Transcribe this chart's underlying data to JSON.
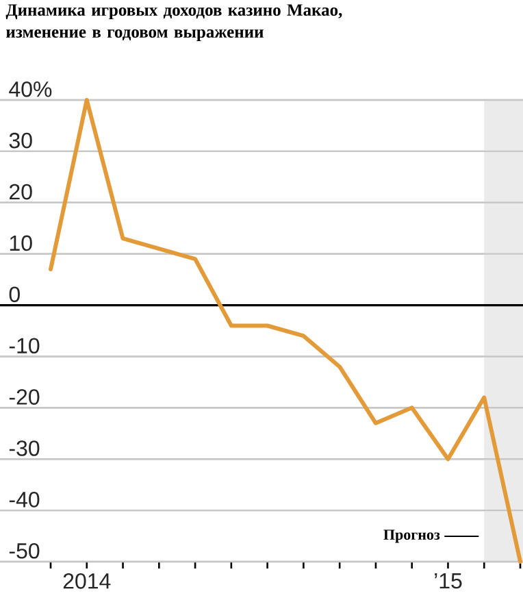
{
  "chart_data": {
    "type": "line",
    "title": "Динамика игровых доходов казино Макао, изменение в годовом выражении",
    "categories": [
      null,
      "2014",
      null,
      null,
      null,
      null,
      null,
      null,
      null,
      null,
      null,
      "’15",
      null,
      null
    ],
    "values": [
      7,
      40,
      13,
      11,
      9,
      -4,
      -4,
      -6,
      -12,
      -23,
      -20,
      -30,
      -18,
      -50
    ],
    "color": "#e39b3a",
    "line_style": "solid",
    "marker": "none",
    "ylim": [
      -50,
      40
    ],
    "yticks": [
      -50,
      -40,
      -30,
      -20,
      -10,
      0,
      10,
      20,
      30,
      {
        "value": 40,
        "label": "40%"
      }
    ],
    "grid": "y",
    "ref_lines": [
      {
        "axis": "y",
        "value": 0,
        "color": "#000000"
      }
    ],
    "annotations": [
      "Прогноз"
    ]
  }
}
